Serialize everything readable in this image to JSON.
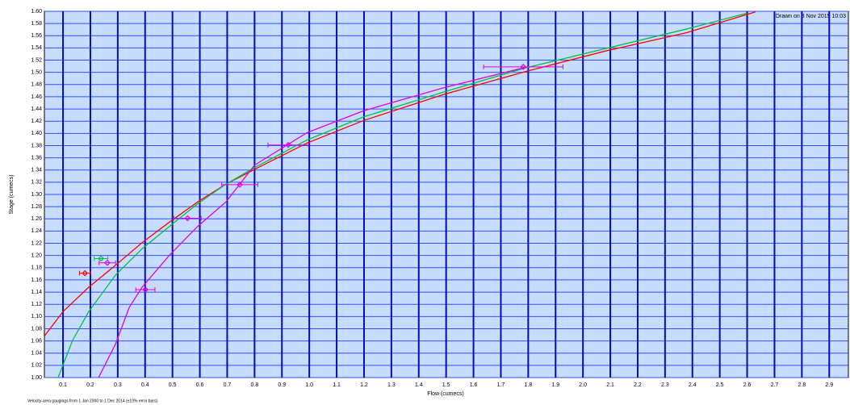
{
  "chart_data": {
    "type": "line",
    "annotation": "Drawn on 3 Nov 2015 10:03",
    "note": "Velocity-area gaugings from 1 Jan 2000 to 1 Dec 2014 (±10% error bars)",
    "xlabel": "Flow (cumecs)",
    "ylabel": "Stage (cumecs)",
    "xlim": [
      0.032,
      2.97
    ],
    "ylim": [
      1.0,
      1.6
    ],
    "xticks": [
      0.1,
      0.2,
      0.3,
      0.4,
      0.5,
      0.6,
      0.7,
      0.8,
      0.9,
      {
        "value": 1.0,
        "label": "1.0"
      },
      1.1,
      1.2,
      1.3,
      1.4,
      1.5,
      1.6,
      1.7,
      1.8,
      1.9,
      {
        "value": 2.0,
        "label": "2.0"
      },
      2.1,
      2.2,
      2.3,
      2.4,
      2.5,
      2.6,
      2.7,
      2.8,
      2.9
    ],
    "yticks": [
      {
        "value": 1.0,
        "label": "1.00"
      },
      1.02,
      1.04,
      1.06,
      1.08,
      {
        "value": 1.1,
        "label": "1.10"
      },
      1.12,
      1.14,
      1.16,
      1.18,
      {
        "value": 1.2,
        "label": "1.20"
      },
      1.22,
      1.24,
      1.26,
      1.28,
      {
        "value": 1.3,
        "label": "1.30"
      },
      1.32,
      1.34,
      1.36,
      1.38,
      {
        "value": 1.4,
        "label": "1.40"
      },
      1.42,
      1.44,
      1.46,
      1.48,
      {
        "value": 1.5,
        "label": "1.50"
      },
      1.52,
      1.54,
      1.56,
      1.58,
      {
        "value": 1.6,
        "label": "1.60"
      }
    ],
    "grid": true,
    "series": [
      {
        "color": "#ff0000",
        "x": [
          0.032,
          0.1,
          0.194,
          0.292,
          0.389,
          0.49,
          0.593,
          0.696,
          0.8,
          0.991,
          1.198,
          1.493,
          1.788,
          2.083,
          2.379,
          2.63
        ],
        "values": [
          1.068,
          1.108,
          1.148,
          1.184,
          1.221,
          1.255,
          1.288,
          1.317,
          1.341,
          1.384,
          1.421,
          1.464,
          1.501,
          1.535,
          1.565,
          1.599
        ]
      },
      {
        "color": "#00c040",
        "x": [
          0.082,
          0.135,
          0.194,
          0.292,
          0.389,
          0.49,
          0.593,
          0.696,
          0.8,
          0.991,
          1.198,
          1.493,
          1.788,
          2.083,
          2.379,
          2.6
        ],
        "values": [
          1.0,
          1.061,
          1.108,
          1.168,
          1.211,
          1.248,
          1.285,
          1.317,
          1.344,
          1.389,
          1.427,
          1.468,
          1.507,
          1.539,
          1.571,
          1.597
        ]
      },
      {
        "color": "#e000e0",
        "x": [
          0.23,
          0.292,
          0.342,
          0.389,
          0.49,
          0.593,
          0.696,
          0.8,
          0.991,
          1.198,
          1.493,
          1.788
        ],
        "values": [
          1.0,
          1.055,
          1.115,
          1.148,
          1.201,
          1.248,
          1.288,
          1.348,
          1.401,
          1.437,
          1.475,
          1.508
        ]
      }
    ],
    "points": [
      {
        "x": 1.782,
        "y": 1.509,
        "xerr": 0.145,
        "color": "#e000e0"
      },
      {
        "x": 0.923,
        "y": 1.381,
        "xerr": 0.074,
        "color": "#e000e0"
      },
      {
        "x": 0.746,
        "y": 1.316,
        "xerr": 0.066,
        "color": "#e000e0"
      },
      {
        "x": 0.555,
        "y": 1.261,
        "xerr": 0.05,
        "color": "#e000e0"
      },
      {
        "x": 0.401,
        "y": 1.144,
        "xerr": 0.035,
        "color": "#e000e0"
      },
      {
        "x": 0.262,
        "y": 1.188,
        "xerr": 0.03,
        "color": "#e000e0"
      },
      {
        "x": 0.18,
        "y": 1.171,
        "xerr": 0.02,
        "color": "#ff0000"
      },
      {
        "x": 0.239,
        "y": 1.195,
        "xerr": 0.025,
        "color": "#00c040"
      }
    ]
  }
}
